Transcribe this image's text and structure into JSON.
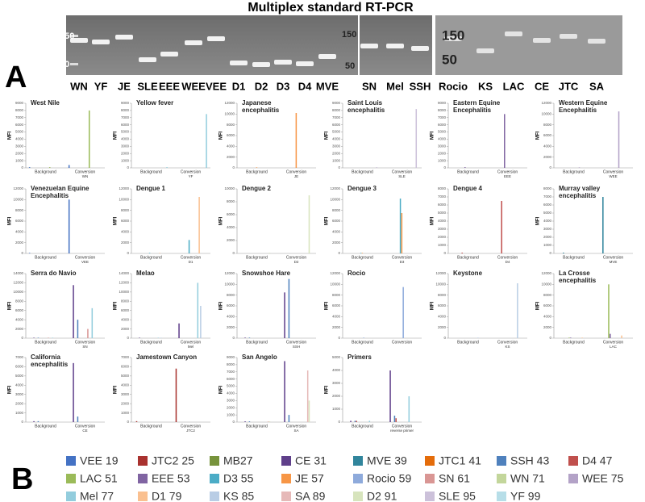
{
  "figure_title": "Multiplex standard RT-PCR",
  "panel_a": "A",
  "panel_b": "B",
  "gel": {
    "lanes": [
      "WN",
      "YF",
      "JE",
      "SLE",
      "EEE",
      "WEE",
      "VEE",
      "D1",
      "D2",
      "D3",
      "D4",
      "MVE",
      "SN",
      "Mel",
      "SSH",
      "Rocio",
      "KS",
      "LAC",
      "CE",
      "JTC",
      "SA"
    ],
    "markers": [
      [
        "150",
        "50"
      ],
      [
        "150",
        "50"
      ],
      [
        "150",
        "50"
      ]
    ]
  },
  "legend": [
    {
      "name": "VEE 19",
      "color": "#4472c4"
    },
    {
      "name": "JTC2 25",
      "color": "#a9322f"
    },
    {
      "name": "MB27",
      "color": "#77933c"
    },
    {
      "name": "CE 31",
      "color": "#5f3f8a"
    },
    {
      "name": "MVE 39",
      "color": "#31859c"
    },
    {
      "name": "JTC1 41",
      "color": "#e46c0a"
    },
    {
      "name": "SSH 43",
      "color": "#4f81bd"
    },
    {
      "name": "D4 47",
      "color": "#c0504d"
    },
    {
      "name": "LAC 51",
      "color": "#9bbb59"
    },
    {
      "name": "EEE 53",
      "color": "#8064a2"
    },
    {
      "name": "D3 55",
      "color": "#4bacc6"
    },
    {
      "name": "JE 57",
      "color": "#f79646"
    },
    {
      "name": "Rocio 59",
      "color": "#8eaadb"
    },
    {
      "name": "SN 61",
      "color": "#d99694"
    },
    {
      "name": "WN 71",
      "color": "#c3d69b"
    },
    {
      "name": "WEE 75",
      "color": "#b3a2c7"
    },
    {
      "name": "Mel 77",
      "color": "#93cddd"
    },
    {
      "name": "D1 79",
      "color": "#fac090"
    },
    {
      "name": "KS 85",
      "color": "#b9cde5"
    },
    {
      "name": "SA 89",
      "color": "#e6b9b8"
    },
    {
      "name": "D2 91",
      "color": "#d7e4bd"
    },
    {
      "name": "SLE 95",
      "color": "#ccc1da"
    },
    {
      "name": "YF 99",
      "color": "#b7dee8"
    }
  ],
  "chart_data": [
    {
      "type": "bar",
      "title": "West Nile",
      "ylabel": "MFI",
      "categories": [
        "Background",
        "Conversion"
      ],
      "xsublabel": "WN",
      "ylim": [
        0,
        9000
      ],
      "yticks": [
        0,
        1000,
        2000,
        3000,
        4000,
        5000,
        6000,
        7000,
        8000,
        9000
      ],
      "series": [
        {
          "name": "VEE 19",
          "color": "#4472c4",
          "values": [
            100,
            400
          ]
        },
        {
          "name": "WN 71",
          "color": "#9bbb59",
          "values": [
            100,
            8000
          ]
        }
      ]
    },
    {
      "type": "bar",
      "title": "Yellow fever",
      "ylabel": "MFI",
      "categories": [
        "Background",
        "Conversion"
      ],
      "xsublabel": "YF",
      "ylim": [
        0,
        9000
      ],
      "yticks": [
        0,
        1000,
        2000,
        3000,
        4000,
        5000,
        6000,
        7000,
        8000,
        9000
      ],
      "series": [
        {
          "name": "YF 99",
          "color": "#93cddd",
          "values": [
            100,
            7500
          ]
        }
      ]
    },
    {
      "type": "bar",
      "title": "Japanese encephalitis",
      "ylabel": "MFI",
      "categories": [
        "Background",
        "Conversion"
      ],
      "xsublabel": "JE",
      "ylim": [
        0,
        12000
      ],
      "yticks": [
        0,
        2000,
        4000,
        6000,
        8000,
        10000,
        12000
      ],
      "series": [
        {
          "name": "JE 57",
          "color": "#f79646",
          "values": [
            100,
            10200
          ]
        }
      ]
    },
    {
      "type": "bar",
      "title": "Saint Louis encephalitis",
      "ylabel": "MFI",
      "categories": [
        "Background",
        "Conversion"
      ],
      "xsublabel": "SLE",
      "ylim": [
        0,
        9000
      ],
      "yticks": [
        0,
        1000,
        2000,
        3000,
        4000,
        5000,
        6000,
        7000,
        8000,
        9000
      ],
      "series": [
        {
          "name": "SLE 95",
          "color": "#ccc1da",
          "values": [
            100,
            8200
          ]
        }
      ]
    },
    {
      "type": "bar",
      "title": "Eastern Equine Encephalitis",
      "ylabel": "MFI",
      "categories": [
        "Background",
        "Conversion"
      ],
      "xsublabel": "EEE",
      "ylim": [
        0,
        9000
      ],
      "yticks": [
        0,
        1000,
        2000,
        3000,
        4000,
        5000,
        6000,
        7000,
        8000,
        9000
      ],
      "series": [
        {
          "name": "EEE 53",
          "color": "#8064a2",
          "values": [
            100,
            7500
          ]
        }
      ]
    },
    {
      "type": "bar",
      "title": "Western Equine Encephalitis",
      "ylabel": "MFI",
      "categories": [
        "Background",
        "Conversion"
      ],
      "xsublabel": "WEE",
      "ylim": [
        0,
        12000
      ],
      "yticks": [
        0,
        2000,
        4000,
        6000,
        8000,
        10000,
        12000
      ],
      "series": [
        {
          "name": "WEE 75",
          "color": "#b3a2c7",
          "values": [
            100,
            10500
          ]
        }
      ]
    },
    {
      "type": "bar",
      "title": "Venezuelan Equine Encephalitis",
      "ylabel": "MFI",
      "categories": [
        "Background",
        "Conversion"
      ],
      "xsublabel": "VEE",
      "ylim": [
        0,
        12000
      ],
      "yticks": [
        0,
        2000,
        4000,
        6000,
        8000,
        10000,
        12000
      ],
      "series": [
        {
          "name": "VEE 19",
          "color": "#4472c4",
          "values": [
            100,
            10000
          ]
        }
      ]
    },
    {
      "type": "bar",
      "title": "Dengue 1",
      "ylabel": "MFI",
      "categories": [
        "Background",
        "Conversion"
      ],
      "xsublabel": "D1",
      "ylim": [
        0,
        12000
      ],
      "yticks": [
        0,
        2000,
        4000,
        6000,
        8000,
        10000,
        12000
      ],
      "series": [
        {
          "name": "D3 55",
          "color": "#4bacc6",
          "values": [
            100,
            2500
          ]
        },
        {
          "name": "D1 79",
          "color": "#fac090",
          "values": [
            100,
            10500
          ]
        }
      ]
    },
    {
      "type": "bar",
      "title": "Dengue 2",
      "ylabel": "MFI",
      "categories": [
        "Background",
        "Conversion"
      ],
      "xsublabel": "D2",
      "ylim": [
        0,
        10000
      ],
      "yticks": [
        0,
        2000,
        4000,
        6000,
        8000,
        10000
      ],
      "series": [
        {
          "name": "D2 91",
          "color": "#d7e4bd",
          "values": [
            100,
            9000
          ]
        }
      ]
    },
    {
      "type": "bar",
      "title": "Dengue 3",
      "ylabel": "MFI",
      "categories": [
        "Background",
        "Conversion"
      ],
      "xsublabel": "D3",
      "ylim": [
        0,
        12000
      ],
      "yticks": [
        0,
        2000,
        4000,
        6000,
        8000,
        10000,
        12000
      ],
      "series": [
        {
          "name": "D3 55",
          "color": "#4bacc6",
          "values": [
            100,
            10200
          ]
        },
        {
          "name": "JE 57",
          "color": "#f79646",
          "values": [
            100,
            7500
          ]
        }
      ]
    },
    {
      "type": "bar",
      "title": "Dengue 4",
      "ylabel": "MFI",
      "categories": [
        "Background",
        "Conversion"
      ],
      "xsublabel": "D4",
      "ylim": [
        0,
        8000
      ],
      "yticks": [
        0,
        1000,
        2000,
        3000,
        4000,
        5000,
        6000,
        7000,
        8000
      ],
      "series": [
        {
          "name": "D4 47",
          "color": "#c0504d",
          "values": [
            100,
            6500
          ]
        }
      ]
    },
    {
      "type": "bar",
      "title": "Murray valley encephalitis",
      "ylabel": "MFI",
      "categories": [
        "Background",
        "Conversion"
      ],
      "xsublabel": "MVE",
      "ylim": [
        0,
        8000
      ],
      "yticks": [
        0,
        1000,
        2000,
        3000,
        4000,
        5000,
        6000,
        7000,
        8000
      ],
      "series": [
        {
          "name": "MVE 39",
          "color": "#31859c",
          "values": [
            100,
            7000
          ]
        }
      ]
    },
    {
      "type": "bar",
      "title": "Serra do Navio",
      "ylabel": "MFI",
      "categories": [
        "Background",
        "Conversion"
      ],
      "xsublabel": "SN",
      "ylim": [
        0,
        14000
      ],
      "yticks": [
        0,
        2000,
        4000,
        6000,
        8000,
        10000,
        12000,
        14000
      ],
      "series": [
        {
          "name": "CE 31",
          "color": "#5f3f8a",
          "values": [
            100,
            11500
          ]
        },
        {
          "name": "SSH 43",
          "color": "#4f81bd",
          "values": [
            100,
            4000
          ]
        },
        {
          "name": "SN 61",
          "color": "#d99694",
          "values": [
            100,
            2000
          ]
        },
        {
          "name": "Mel 77",
          "color": "#93cddd",
          "values": [
            100,
            6500
          ]
        }
      ]
    },
    {
      "type": "bar",
      "title": "Melao",
      "ylabel": "MFI",
      "categories": [
        "Background",
        "Conversion"
      ],
      "xsublabel": "Mel",
      "ylim": [
        0,
        14000
      ],
      "yticks": [
        0,
        2000,
        4000,
        6000,
        8000,
        10000,
        12000,
        14000
      ],
      "series": [
        {
          "name": "CE 31",
          "color": "#5f3f8a",
          "values": [
            100,
            3200
          ]
        },
        {
          "name": "Mel 77",
          "color": "#93cddd",
          "values": [
            100,
            12000
          ]
        },
        {
          "name": "KS 85",
          "color": "#b9cde5",
          "values": [
            100,
            7000
          ]
        }
      ]
    },
    {
      "type": "bar",
      "title": "Snowshoe Hare",
      "ylabel": "MFI",
      "categories": [
        "Background",
        "Conversion"
      ],
      "xsublabel": "SSH",
      "ylim": [
        0,
        12000
      ],
      "yticks": [
        0,
        2000,
        4000,
        6000,
        8000,
        10000,
        12000
      ],
      "series": [
        {
          "name": "CE 31",
          "color": "#5f3f8a",
          "values": [
            100,
            8500
          ]
        },
        {
          "name": "SSH 43",
          "color": "#4f81bd",
          "values": [
            100,
            11000
          ]
        }
      ]
    },
    {
      "type": "bar",
      "title": "Rocio",
      "ylabel": "MFI",
      "categories": [
        "Background",
        "Conversion"
      ],
      "xsublabel": "",
      "ylim": [
        0,
        12000
      ],
      "yticks": [
        0,
        2000,
        4000,
        6000,
        8000,
        10000,
        12000
      ],
      "series": [
        {
          "name": "Rocio 59",
          "color": "#8eaadb",
          "values": [
            100,
            9500
          ]
        }
      ]
    },
    {
      "type": "bar",
      "title": "Keystone",
      "ylabel": "MFI",
      "categories": [
        "Background",
        "Conversion"
      ],
      "xsublabel": "KS",
      "ylim": [
        0,
        12000
      ],
      "yticks": [
        0,
        2000,
        4000,
        6000,
        8000,
        10000,
        12000
      ],
      "series": [
        {
          "name": "KS 85",
          "color": "#b9cde5",
          "values": [
            100,
            10200
          ]
        }
      ]
    },
    {
      "type": "bar",
      "title": "La Crosse encephalitis",
      "ylabel": "MFI",
      "categories": [
        "Background",
        "Conversion"
      ],
      "xsublabel": "LAC",
      "ylim": [
        0,
        12000
      ],
      "yticks": [
        0,
        2000,
        4000,
        6000,
        8000,
        10000,
        12000
      ],
      "series": [
        {
          "name": "EEE 53",
          "color": "#8064a2",
          "values": [
            100,
            800
          ]
        },
        {
          "name": "LAC 51",
          "color": "#9bbb59",
          "values": [
            100,
            10000
          ]
        },
        {
          "name": "D1 79",
          "color": "#fac090",
          "values": [
            100,
            500
          ]
        }
      ]
    },
    {
      "type": "bar",
      "title": "California encephalitis",
      "ylabel": "MFI",
      "categories": [
        "Background",
        "Conversion"
      ],
      "xsublabel": "CE",
      "ylim": [
        0,
        7000
      ],
      "yticks": [
        0,
        1000,
        2000,
        3000,
        4000,
        5000,
        6000,
        7000
      ],
      "series": [
        {
          "name": "CE 31",
          "color": "#5f3f8a",
          "values": [
            100,
            6400
          ]
        },
        {
          "name": "SSH 43",
          "color": "#4f81bd",
          "values": [
            100,
            600
          ]
        }
      ]
    },
    {
      "type": "bar",
      "title": "Jamestown Canyon",
      "ylabel": "MFI",
      "categories": [
        "Background",
        "Conversion"
      ],
      "xsublabel": "JTC2",
      "ylim": [
        0,
        7000
      ],
      "yticks": [
        0,
        1000,
        2000,
        3000,
        4000,
        5000,
        6000,
        7000
      ],
      "series": [
        {
          "name": "JTC2 25",
          "color": "#a9322f",
          "values": [
            100,
            5800
          ]
        }
      ]
    },
    {
      "type": "bar",
      "title": "San Angelo",
      "ylabel": "MFI",
      "categories": [
        "Background",
        "Conversion"
      ],
      "xsublabel": "SA",
      "ylim": [
        0,
        9000
      ],
      "yticks": [
        0,
        1000,
        2000,
        3000,
        4000,
        5000,
        6000,
        7000,
        8000,
        9000
      ],
      "series": [
        {
          "name": "CE 31",
          "color": "#5f3f8a",
          "values": [
            100,
            8500
          ]
        },
        {
          "name": "SSH 43",
          "color": "#4f81bd",
          "values": [
            100,
            1000
          ]
        },
        {
          "name": "SA 89",
          "color": "#e6b9b8",
          "values": [
            100,
            7200
          ]
        },
        {
          "name": "D2 91",
          "color": "#d7e4bd",
          "values": [
            100,
            3000
          ]
        }
      ]
    },
    {
      "type": "bar",
      "title": "Primers",
      "ylabel": "MFI",
      "categories": [
        "Background",
        "Conversion"
      ],
      "xsublabel": "reverse primer",
      "ylim": [
        0,
        5000
      ],
      "yticks": [
        0,
        1000,
        2000,
        3000,
        4000,
        5000
      ],
      "series": [
        {
          "name": "CE 31",
          "color": "#5f3f8a",
          "values": [
            100,
            4000
          ]
        },
        {
          "name": "SSH 43",
          "color": "#4f81bd",
          "values": [
            100,
            500
          ]
        },
        {
          "name": "D4 47",
          "color": "#c0504d",
          "values": [
            100,
            300
          ]
        },
        {
          "name": "Mel 77",
          "color": "#93cddd",
          "values": [
            100,
            2000
          ]
        }
      ]
    }
  ]
}
